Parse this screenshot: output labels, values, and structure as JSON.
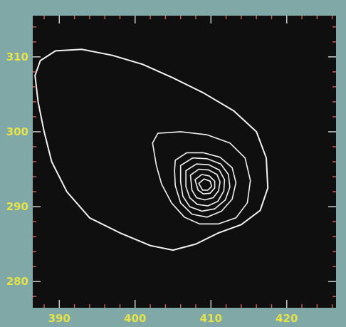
{
  "chart_data": {
    "type": "contour",
    "title": "",
    "xlabel": "",
    "ylabel": "",
    "xlim": [
      386.5,
      426.5
    ],
    "ylim": [
      276.5,
      315.5
    ],
    "x_ticks": [
      390,
      400,
      410,
      420
    ],
    "y_ticks": [
      280,
      290,
      300,
      310
    ],
    "grid": false,
    "legend": "none",
    "colors": {
      "frame": "#7fa8a6",
      "plot_background": "#0f0f0f",
      "contour_line": "#f2f2f2",
      "tick_label": "#e6e24a",
      "tick_mark": "#d8d8d8",
      "tick_mark_minor": "#d06060"
    },
    "peak": [
      409.5,
      293.5
    ],
    "contours": [
      {
        "level": 1,
        "points": [
          [
            386.8,
            307.5
          ],
          [
            387.5,
            309.5
          ],
          [
            389.5,
            310.8
          ],
          [
            393,
            311
          ],
          [
            397,
            310.2
          ],
          [
            401,
            309
          ],
          [
            405,
            307.2
          ],
          [
            409,
            305.2
          ],
          [
            413,
            302.8
          ],
          [
            416,
            300
          ],
          [
            417.3,
            296.5
          ],
          [
            417.5,
            292.5
          ],
          [
            416.5,
            289.5
          ],
          [
            414,
            287.6
          ],
          [
            411,
            286.5
          ],
          [
            408,
            285
          ],
          [
            405,
            284.2
          ],
          [
            402,
            284.8
          ],
          [
            398,
            286.5
          ],
          [
            394,
            288.5
          ],
          [
            391,
            292
          ],
          [
            389,
            296
          ],
          [
            388,
            300
          ],
          [
            387.2,
            304
          ],
          [
            386.8,
            307.5
          ]
        ]
      },
      {
        "level": 2,
        "points": [
          [
            402.3,
            298.5
          ],
          [
            403,
            299.8
          ],
          [
            406,
            300
          ],
          [
            409.5,
            299.6
          ],
          [
            412.5,
            298.5
          ],
          [
            414.5,
            296.5
          ],
          [
            415.2,
            293.5
          ],
          [
            414.8,
            290.5
          ],
          [
            413.3,
            288.5
          ],
          [
            411,
            287.7
          ],
          [
            408.5,
            287.7
          ],
          [
            406.5,
            288.6
          ],
          [
            404.8,
            290.5
          ],
          [
            403.5,
            293
          ],
          [
            402.8,
            295.5
          ],
          [
            402.3,
            298.5
          ]
        ]
      },
      {
        "level": 3,
        "points": [
          [
            405.3,
            296.2
          ],
          [
            406.8,
            297.2
          ],
          [
            409,
            297.2
          ],
          [
            411.2,
            296.6
          ],
          [
            412.8,
            295.2
          ],
          [
            413.3,
            293.2
          ],
          [
            412.8,
            291
          ],
          [
            411.4,
            289.4
          ],
          [
            409.5,
            288.6
          ],
          [
            407.5,
            289
          ],
          [
            406,
            290.5
          ],
          [
            405.3,
            292.8
          ],
          [
            405.2,
            294.8
          ],
          [
            405.3,
            296.2
          ]
        ]
      },
      {
        "level": 4,
        "points": [
          [
            406,
            295.5
          ],
          [
            407.6,
            296.5
          ],
          [
            409.5,
            296.4
          ],
          [
            411.3,
            295.7
          ],
          [
            412.3,
            294.3
          ],
          [
            412.5,
            292.6
          ],
          [
            411.9,
            290.9
          ],
          [
            410.5,
            289.7
          ],
          [
            408.8,
            289.4
          ],
          [
            407.2,
            290
          ],
          [
            406.3,
            291.4
          ],
          [
            406,
            293.3
          ],
          [
            406,
            295.5
          ]
        ]
      },
      {
        "level": 5,
        "points": [
          [
            406.7,
            294.8
          ],
          [
            408.1,
            295.7
          ],
          [
            409.7,
            295.6
          ],
          [
            411.1,
            294.9
          ],
          [
            411.8,
            293.6
          ],
          [
            411.7,
            292.1
          ],
          [
            410.9,
            290.7
          ],
          [
            409.6,
            290.1
          ],
          [
            408.2,
            290.3
          ],
          [
            407.2,
            291.2
          ],
          [
            406.7,
            292.7
          ],
          [
            406.7,
            294.8
          ]
        ]
      },
      {
        "level": 6,
        "points": [
          [
            407.3,
            294.2
          ],
          [
            408.4,
            295
          ],
          [
            409.7,
            294.9
          ],
          [
            410.8,
            294.3
          ],
          [
            411.2,
            293.3
          ],
          [
            411,
            292.1
          ],
          [
            410.3,
            291.2
          ],
          [
            409.2,
            290.9
          ],
          [
            408.1,
            291.2
          ],
          [
            407.5,
            292.2
          ],
          [
            407.3,
            294.2
          ]
        ]
      },
      {
        "level": 7,
        "points": [
          [
            407.9,
            293.6
          ],
          [
            408.8,
            294.3
          ],
          [
            409.8,
            294.1
          ],
          [
            410.5,
            293.4
          ],
          [
            410.5,
            292.5
          ],
          [
            409.9,
            291.8
          ],
          [
            409,
            291.7
          ],
          [
            408.3,
            292.2
          ],
          [
            407.9,
            293.6
          ]
        ]
      },
      {
        "level": 8,
        "points": [
          [
            408.4,
            293.1
          ],
          [
            409.1,
            293.7
          ],
          [
            409.9,
            293.4
          ],
          [
            410.1,
            292.7
          ],
          [
            409.6,
            292.2
          ],
          [
            408.9,
            292.2
          ],
          [
            408.4,
            293.1
          ]
        ]
      }
    ]
  }
}
